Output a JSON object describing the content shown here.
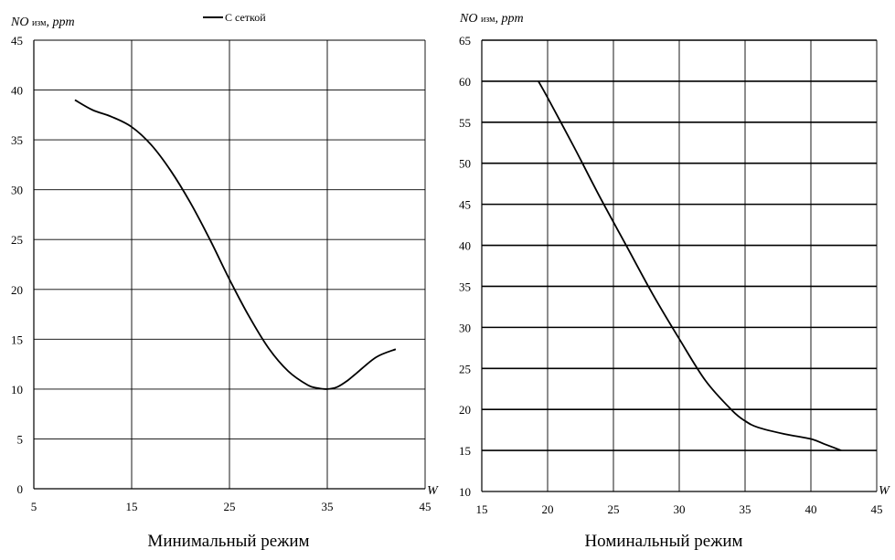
{
  "chart_data": [
    {
      "type": "line",
      "title": "Минимальный режим",
      "ylabel_main": "NO",
      "ylabel_sub": "изм",
      "ylabel_unit": ", ppm",
      "xlabel": "W",
      "xlim": [
        5,
        45
      ],
      "ylim": [
        0,
        45
      ],
      "x_ticks": [
        5,
        15,
        25,
        35,
        45
      ],
      "y_ticks": [
        0,
        5,
        10,
        15,
        20,
        25,
        30,
        35,
        40,
        45
      ],
      "grid": true,
      "legend": {
        "position": "top-center",
        "entries": [
          "С сеткой"
        ]
      },
      "series": [
        {
          "name": "С сеткой",
          "color": "#000000",
          "x": [
            9.2,
            11,
            13,
            15,
            17,
            19,
            21,
            23,
            25,
            27,
            29,
            31,
            33,
            34,
            35,
            36,
            37,
            38,
            40,
            42
          ],
          "y": [
            39.0,
            38.0,
            37.3,
            36.3,
            34.5,
            31.9,
            28.7,
            25.0,
            21.0,
            17.3,
            14.1,
            11.8,
            10.4,
            10.1,
            10.0,
            10.2,
            10.8,
            11.6,
            13.2,
            14.0
          ]
        }
      ]
    },
    {
      "type": "line",
      "title": "Номинальный режим",
      "ylabel_main": "NO",
      "ylabel_sub": "изм",
      "ylabel_unit": ", ppm",
      "xlabel": "W",
      "xlim": [
        15,
        45
      ],
      "ylim": [
        10,
        65
      ],
      "x_ticks": [
        15,
        20,
        25,
        30,
        35,
        40,
        45
      ],
      "y_ticks": [
        10,
        15,
        20,
        25,
        30,
        35,
        40,
        45,
        50,
        55,
        60,
        65
      ],
      "grid": true,
      "series": [
        {
          "name": "",
          "color": "#000000",
          "x": [
            19.3,
            20,
            22,
            24,
            26,
            28,
            30,
            32,
            34,
            35,
            36,
            38,
            40,
            41,
            42.3
          ],
          "y": [
            60.0,
            58.0,
            52.0,
            45.8,
            39.9,
            34.0,
            28.6,
            23.5,
            19.9,
            18.6,
            17.8,
            17.0,
            16.4,
            15.8,
            15.0
          ]
        }
      ]
    }
  ]
}
